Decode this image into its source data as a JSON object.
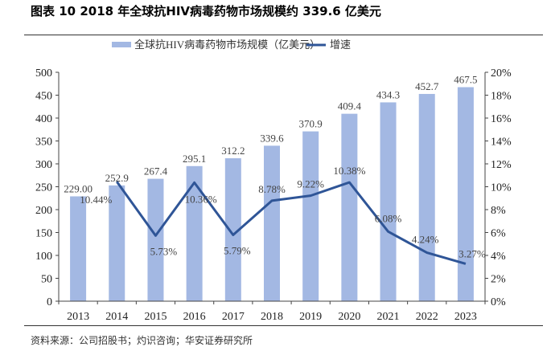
{
  "title": "图表 10 2018 年全球抗HIV病毒药物市场规模约 339.6 亿美元",
  "source": "资料来源：公司招股书；灼识咨询；华安证券研究所",
  "colors": {
    "bar": "#a3b8e3",
    "line": "#2f5597"
  },
  "chart_data": {
    "type": "bar+line",
    "categories": [
      "2013",
      "2014",
      "2015",
      "2016",
      "2017",
      "2018",
      "2019",
      "2020",
      "2021",
      "2022",
      "2023"
    ],
    "series": [
      {
        "name": "全球抗HIV病毒药物市场规模（亿美元）",
        "type": "bar",
        "axis": "left",
        "values": [
          229.0,
          252.9,
          267.4,
          295.1,
          312.2,
          339.6,
          370.9,
          409.4,
          434.3,
          452.7,
          467.5
        ],
        "labels": [
          "229.00",
          "252.9",
          "267.4",
          "295.1",
          "312.2",
          "339.6",
          "370.9",
          "409.4",
          "434.3",
          "452.7",
          "467.5"
        ]
      },
      {
        "name": "增速",
        "type": "line",
        "axis": "right",
        "values": [
          null,
          10.44,
          5.73,
          10.36,
          5.79,
          8.78,
          9.22,
          10.38,
          6.08,
          4.24,
          3.27
        ],
        "labels": [
          "",
          "10.44%",
          "5.73%",
          "10.36%",
          "5.79%",
          "8.78%",
          "9.22%",
          "10.38%",
          "6.08%",
          "4.24%",
          "3.27%"
        ]
      }
    ],
    "ylim_left": [
      0,
      500
    ],
    "yticks_left": [
      "0",
      "50",
      "100",
      "150",
      "200",
      "250",
      "300",
      "350",
      "400",
      "450",
      "500"
    ],
    "ylim_right": [
      0,
      20
    ],
    "yticks_right": [
      "0%",
      "2%",
      "4%",
      "6%",
      "8%",
      "10%",
      "12%",
      "14%",
      "16%",
      "18%",
      "20%"
    ],
    "legend": "top",
    "grid": false
  }
}
